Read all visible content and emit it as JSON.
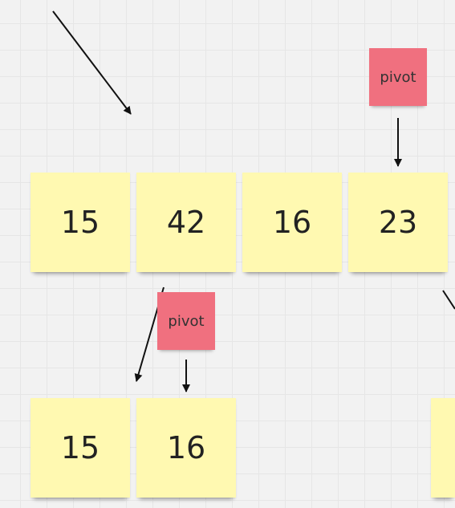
{
  "board": {
    "row1": [
      "15",
      "42",
      "16",
      "23"
    ],
    "row2": [
      "15",
      "16"
    ],
    "pivot_label_top": "pivot",
    "pivot_label_bottom": "pivot"
  },
  "colors": {
    "sticky_yellow": "#fff9b1",
    "sticky_pink": "#f0707f",
    "background": "#f2f2f2",
    "arrow": "#111111"
  }
}
